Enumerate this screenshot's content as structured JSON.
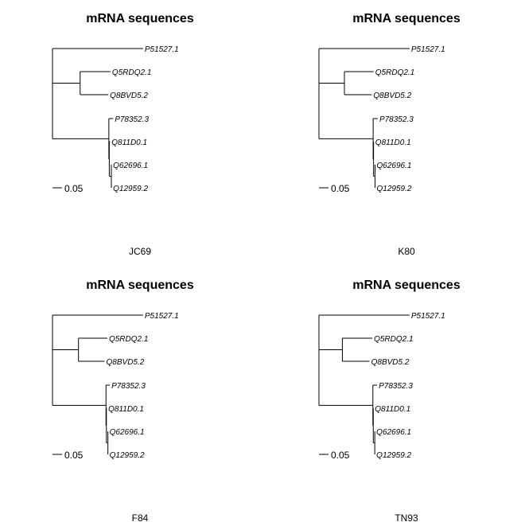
{
  "tips": [
    "P51527.1",
    "Q5RDQ2.1",
    "Q8BVD5.2",
    "P78352.3",
    "Q811D0.1",
    "Q62696.1",
    "Q12959.2"
  ],
  "panels": [
    {
      "title": "mRNA sequences",
      "model": "JC69",
      "scale_label": "0.05",
      "node_x": {
        "root": 0,
        "n1": 0.202,
        "n2": 0.412,
        "n3": 0.415,
        "n4": 0.43
      },
      "tip_x": [
        0.662,
        0.424,
        0.408,
        0.443,
        0.42,
        0.431,
        0.431
      ]
    },
    {
      "title": "mRNA sequences",
      "model": "K80",
      "scale_label": "0.05",
      "node_x": {
        "root": 0,
        "n1": 0.186,
        "n2": 0.396,
        "n3": 0.399,
        "n4": 0.41
      },
      "tip_x": [
        0.662,
        0.4,
        0.386,
        0.43,
        0.4,
        0.41,
        0.41
      ]
    },
    {
      "title": "mRNA sequences",
      "model": "F84",
      "scale_label": "0.05",
      "node_x": {
        "root": 0,
        "n1": 0.19,
        "n2": 0.391,
        "n3": 0.394,
        "n4": 0.405
      },
      "tip_x": [
        0.662,
        0.401,
        0.381,
        0.419,
        0.396,
        0.405,
        0.405
      ]
    },
    {
      "title": "mRNA sequences",
      "model": "TN93",
      "scale_label": "0.05",
      "node_x": {
        "root": 0,
        "n1": 0.171,
        "n2": 0.394,
        "n3": 0.397,
        "n4": 0.408
      },
      "tip_x": [
        0.662,
        0.39,
        0.37,
        0.425,
        0.397,
        0.408,
        0.408
      ]
    }
  ]
}
